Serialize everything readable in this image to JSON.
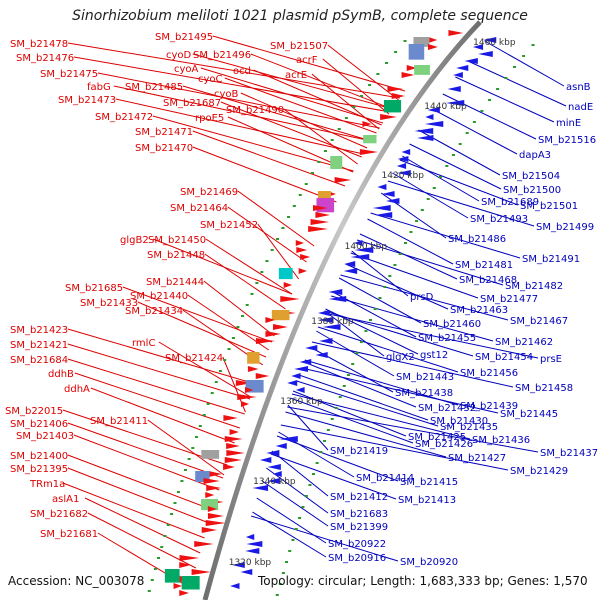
{
  "title": "Sinorhizobium meliloti 1021 plasmid pSymB, complete sequence",
  "footer": {
    "accession": "Accession: NC_003078",
    "summary": "Topology: circular; Length: 1,683,333 bp; Genes: 1,570"
  },
  "colors": {
    "left_label": "#dd0000",
    "right_label": "#0000bb",
    "backbone": "#8a8a8a",
    "tick": "#2a9a2a"
  },
  "kbp_markers": [
    "1460 kbp",
    "1440 kbp",
    "1420 kbp",
    "1400 kbp",
    "1380 kbp",
    "1360 kbp",
    "1340 kbp",
    "1320 kbp"
  ],
  "left_labels": [
    "SM_b21495",
    "SM_b21507",
    "SM_b21478",
    "cyoD",
    "SM_b21496",
    "acrF",
    "SM_b21476",
    "cyoA",
    "ocd",
    "acrE",
    "SM_b21475",
    "cyoC",
    "fabG",
    "SM_b21485",
    "cyoB",
    "SM_b21473",
    "SM_b21687",
    "SM_b21490",
    "SM_b21472",
    "rpoE5",
    "SM_b21471",
    "SM_b21470",
    "SM_b21469",
    "SM_b21464",
    "SM_b21452",
    "glgB2",
    "SM_b21450",
    "SM_b21448",
    "SM_b21444",
    "SM_b21685",
    "SM_b21440",
    "SM_b21433",
    "SM_b21434",
    "SM_b21423",
    "rmlC",
    "SM_b21421",
    "SM_b21424",
    "SM_b21684",
    "ddhB",
    "ddhA",
    "SM_b22015",
    "SM_b21411",
    "SM_b21406",
    "SM_b21403",
    "SM_b21400",
    "SM_b21395",
    "TRm1a",
    "aslA1",
    "SM_b21682",
    "SM_b21681"
  ],
  "right_labels": [
    "asnB",
    "nadE",
    "minE",
    "SM_b21516",
    "dapA3",
    "SM_b21504",
    "SM_b21500",
    "SM_b21689",
    "SM_b21501",
    "SM_b21493",
    "SM_b21499",
    "SM_b21486",
    "SM_b21491",
    "SM_b21481",
    "SM_b21468",
    "SM_b21482",
    "prsD",
    "SM_b21477",
    "SM_b21463",
    "SM_b21460",
    "SM_b21467",
    "SM_b21455",
    "SM_b21462",
    "glgX2",
    "gst12",
    "SM_b21454",
    "prsE",
    "SM_b21456",
    "SM_b21443",
    "SM_b21458",
    "SM_b21438",
    "SM_b21439",
    "SM_b21432",
    "SM_b21445",
    "SM_b21430",
    "SM_b21435",
    "SM_b21436",
    "SM_b21425",
    "SM_b21426",
    "SM_b21437",
    "SM_b21427",
    "SM_b21419",
    "SM_b21429",
    "SM_b21414",
    "SM_b21415",
    "SM_b21412",
    "SM_b21413",
    "SM_b21683",
    "SM_b21399",
    "SM_b20922",
    "SM_b20916",
    "SM_b20920"
  ]
}
